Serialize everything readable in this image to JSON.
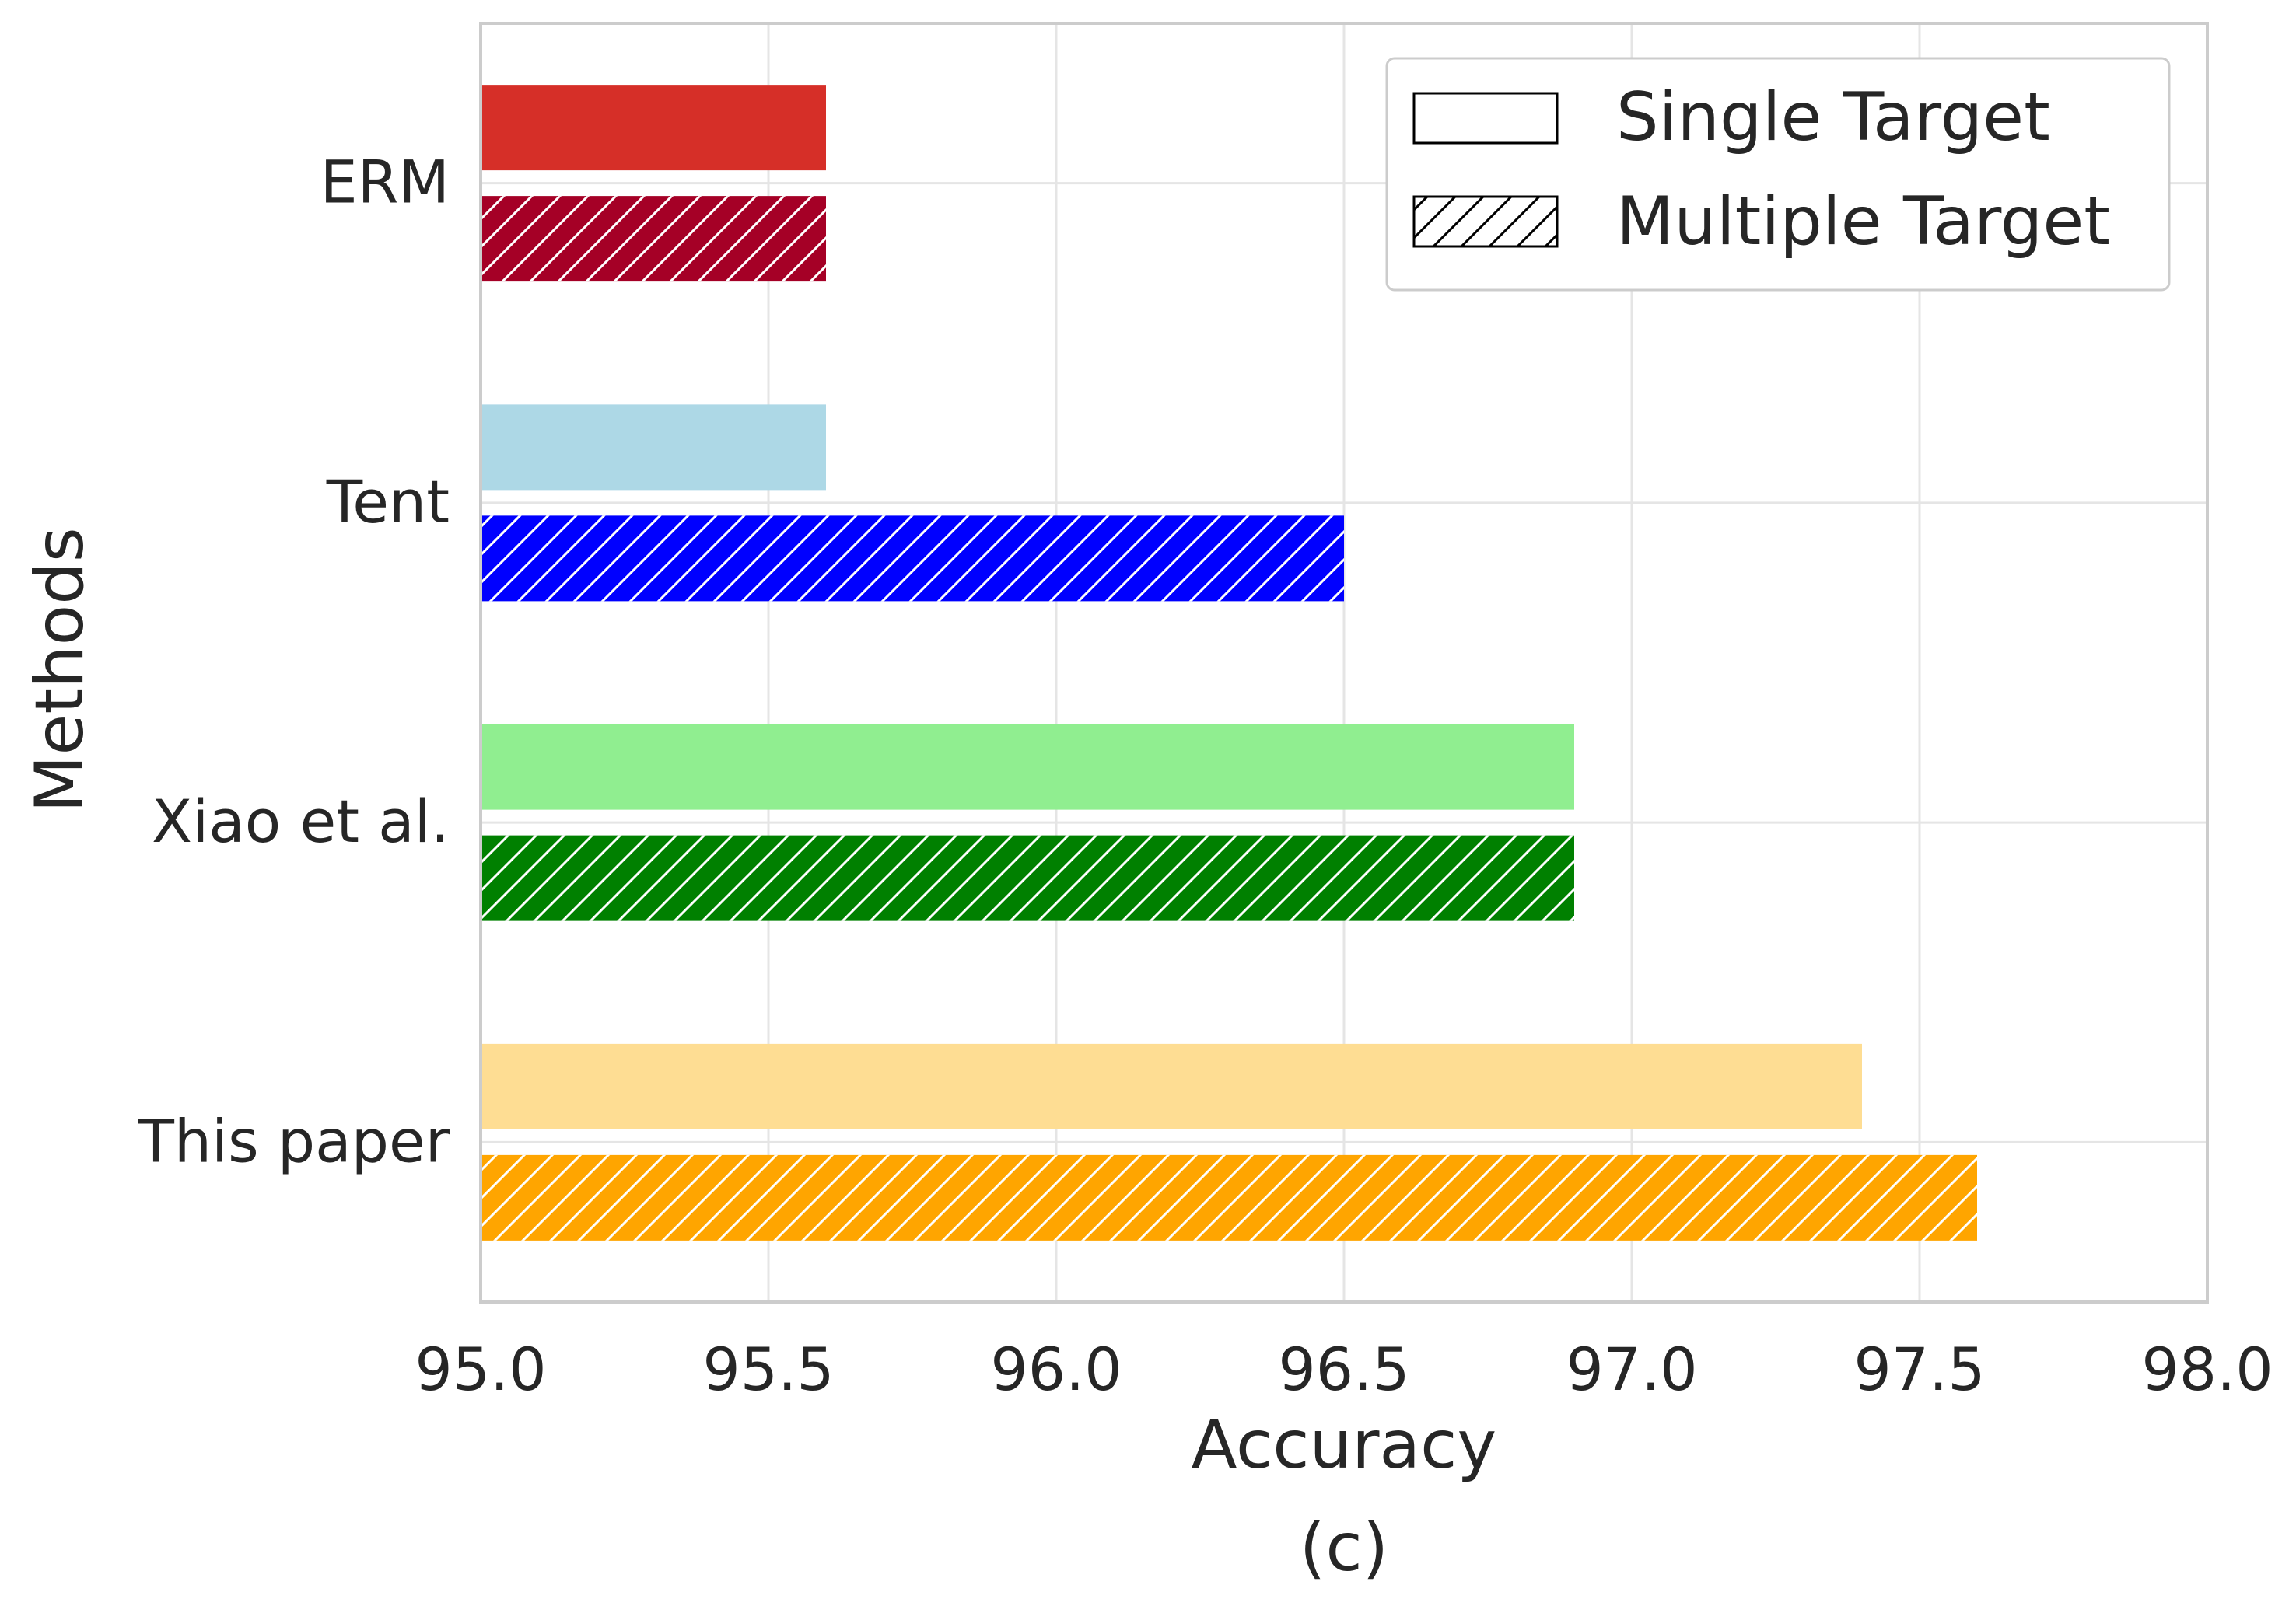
{
  "chart_data": {
    "type": "bar",
    "orientation": "horizontal",
    "categories": [
      "ERM",
      "Tent",
      "Xiao et al.",
      "This paper"
    ],
    "series": [
      {
        "name": "Single Target",
        "hatch": "none",
        "values": [
          95.6,
          95.6,
          96.9,
          97.4
        ],
        "colors": [
          "#d62f28",
          "#add8e6",
          "#90ee90",
          "#fedd93"
        ]
      },
      {
        "name": "Multiple Target",
        "hatch": "diagonal",
        "values": [
          95.6,
          96.5,
          96.9,
          97.6
        ],
        "colors": [
          "#a50026",
          "#0000ff",
          "#008000",
          "#ffa500"
        ]
      }
    ],
    "xlabel": "Accuracy",
    "ylabel": "Methods",
    "caption": "(c)",
    "xlim": [
      95.0,
      98.0
    ],
    "xticks": [
      "95.0",
      "95.5",
      "96.0",
      "96.5",
      "97.0",
      "97.5",
      "98.0"
    ],
    "grid": true,
    "legend_position": "top-right",
    "colors": {
      "grid": "#e5e5e5",
      "spine": "#cccccc",
      "text": "#262626"
    }
  }
}
